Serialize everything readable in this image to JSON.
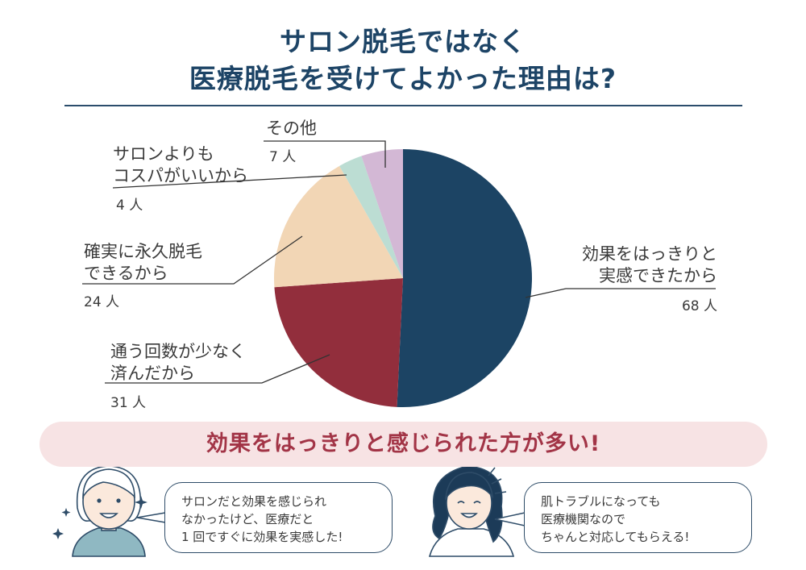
{
  "title": {
    "line1": "サロン脱毛ではなく",
    "line2": "医療脱毛を受けてよかった理由は?"
  },
  "chart_data": {
    "type": "pie",
    "slices": [
      {
        "label": "効果をはっきりと実感できたから",
        "lines": [
          "効果をはっきりと",
          "実感できたから"
        ],
        "count_text": "68 人",
        "value": 68,
        "color": "#1c4464"
      },
      {
        "label": "通う回数が少なく済んだから",
        "lines": [
          "通う回数が少なく",
          "済んだから"
        ],
        "count_text": "31 人",
        "value": 31,
        "color": "#922e3c"
      },
      {
        "label": "確実に永久脱毛できるから",
        "lines": [
          "確実に永久脱毛",
          "できるから"
        ],
        "count_text": "24 人",
        "value": 24,
        "color": "#f2d6b5"
      },
      {
        "label": "サロンよりもコスパがいいから",
        "lines": [
          "サロンよりも",
          "コスパがいいから"
        ],
        "count_text": "4 人",
        "value": 4,
        "color": "#bcddd3"
      },
      {
        "label": "その他",
        "lines": [
          "その他"
        ],
        "count_text": "7 人",
        "value": 7,
        "color": "#d3b8d5"
      }
    ],
    "start": "12 o'clock",
    "direction": "clockwise"
  },
  "banner": "効果をはっきりと感じられた方が多い!",
  "comments": [
    {
      "lines": [
        "サロンだと効果を感じられ",
        "なかったけど、医療だと",
        "1 回ですぐに効果を実感した!"
      ]
    },
    {
      "lines": [
        "肌トラブルになっても",
        "医療機関なので",
        "ちゃんと対応してもらえる!"
      ]
    }
  ]
}
